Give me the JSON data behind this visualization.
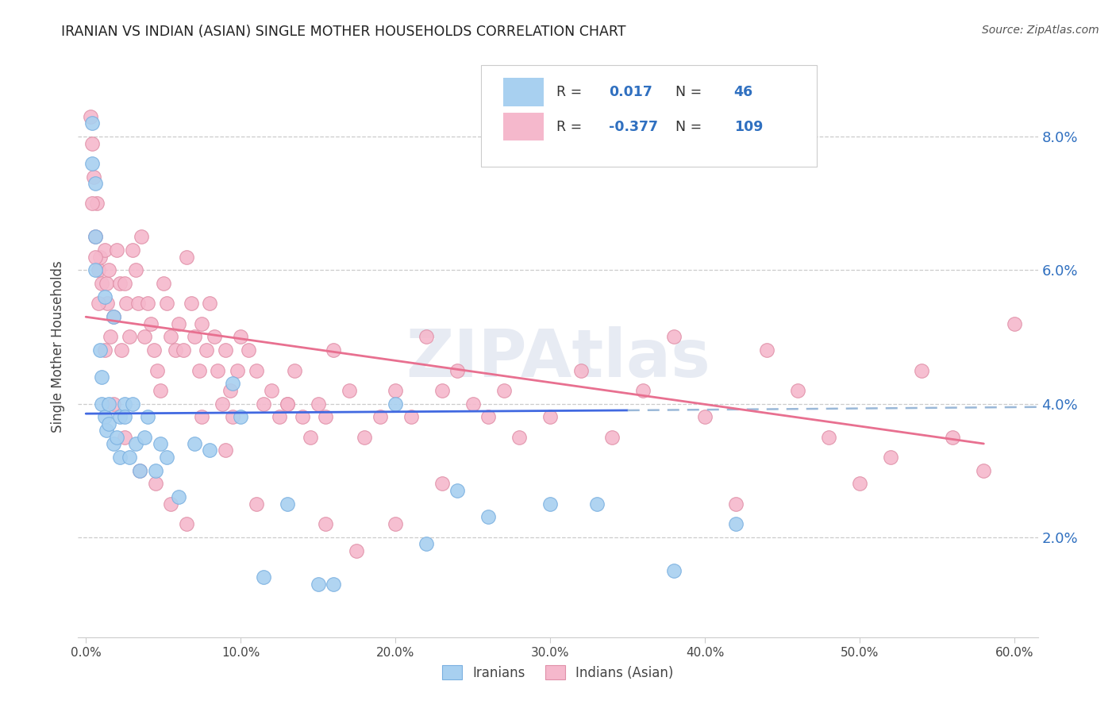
{
  "title": "IRANIAN VS INDIAN (ASIAN) SINGLE MOTHER HOUSEHOLDS CORRELATION CHART",
  "source": "Source: ZipAtlas.com",
  "ylabel": "Single Mother Households",
  "xlabel_ticks": [
    "0.0%",
    "10.0%",
    "20.0%",
    "30.0%",
    "40.0%",
    "50.0%",
    "60.0%"
  ],
  "xlabel_vals": [
    0.0,
    0.1,
    0.2,
    0.3,
    0.4,
    0.5,
    0.6
  ],
  "ytick_labels": [
    "2.0%",
    "4.0%",
    "6.0%",
    "8.0%"
  ],
  "ytick_vals": [
    0.02,
    0.04,
    0.06,
    0.08
  ],
  "xlim": [
    -0.005,
    0.615
  ],
  "ylim": [
    0.005,
    0.092
  ],
  "legend_iranians": "Iranians",
  "legend_indians": "Indians (Asian)",
  "r_iranians": "0.017",
  "n_iranians": "46",
  "r_indians": "-0.377",
  "n_indians": "109",
  "color_iranians": "#a8d0f0",
  "color_iranians_edge": "#7ab0e0",
  "color_iranians_line": "#4169E1",
  "color_iranians_line_dash": "#9ab8d8",
  "color_indians": "#f5b8cc",
  "color_indians_edge": "#e090a8",
  "color_indians_line": "#e87090",
  "color_text_blue": "#3070c0",
  "color_label_dark": "#444444",
  "background_color": "#ffffff",
  "grid_color": "#cccccc",
  "watermark": "ZIPAtlas",
  "iranians_x": [
    0.004,
    0.004,
    0.006,
    0.006,
    0.006,
    0.009,
    0.01,
    0.01,
    0.012,
    0.012,
    0.013,
    0.015,
    0.015,
    0.018,
    0.018,
    0.02,
    0.022,
    0.022,
    0.025,
    0.025,
    0.028,
    0.03,
    0.032,
    0.035,
    0.038,
    0.04,
    0.045,
    0.048,
    0.052,
    0.06,
    0.07,
    0.08,
    0.095,
    0.1,
    0.115,
    0.13,
    0.15,
    0.16,
    0.2,
    0.22,
    0.24,
    0.26,
    0.3,
    0.33,
    0.38,
    0.42
  ],
  "iranians_y": [
    0.082,
    0.076,
    0.073,
    0.065,
    0.06,
    0.048,
    0.044,
    0.04,
    0.056,
    0.038,
    0.036,
    0.04,
    0.037,
    0.053,
    0.034,
    0.035,
    0.038,
    0.032,
    0.04,
    0.038,
    0.032,
    0.04,
    0.034,
    0.03,
    0.035,
    0.038,
    0.03,
    0.034,
    0.032,
    0.026,
    0.034,
    0.033,
    0.043,
    0.038,
    0.014,
    0.025,
    0.013,
    0.013,
    0.04,
    0.019,
    0.027,
    0.023,
    0.025,
    0.025,
    0.015,
    0.022
  ],
  "indians_x": [
    0.003,
    0.004,
    0.005,
    0.006,
    0.007,
    0.008,
    0.009,
    0.01,
    0.012,
    0.013,
    0.014,
    0.015,
    0.016,
    0.018,
    0.02,
    0.022,
    0.023,
    0.025,
    0.026,
    0.028,
    0.03,
    0.032,
    0.034,
    0.036,
    0.038,
    0.04,
    0.042,
    0.044,
    0.046,
    0.048,
    0.05,
    0.052,
    0.055,
    0.058,
    0.06,
    0.063,
    0.065,
    0.068,
    0.07,
    0.073,
    0.075,
    0.078,
    0.08,
    0.083,
    0.085,
    0.088,
    0.09,
    0.093,
    0.095,
    0.098,
    0.1,
    0.105,
    0.11,
    0.115,
    0.12,
    0.125,
    0.13,
    0.135,
    0.14,
    0.145,
    0.15,
    0.155,
    0.16,
    0.17,
    0.18,
    0.19,
    0.2,
    0.21,
    0.22,
    0.23,
    0.24,
    0.25,
    0.26,
    0.27,
    0.28,
    0.3,
    0.32,
    0.34,
    0.36,
    0.38,
    0.4,
    0.42,
    0.44,
    0.46,
    0.48,
    0.5,
    0.52,
    0.54,
    0.56,
    0.58,
    0.6,
    0.004,
    0.006,
    0.008,
    0.012,
    0.018,
    0.025,
    0.035,
    0.045,
    0.055,
    0.065,
    0.075,
    0.09,
    0.11,
    0.13,
    0.155,
    0.175,
    0.2,
    0.23
  ],
  "indians_y": [
    0.083,
    0.079,
    0.074,
    0.065,
    0.07,
    0.06,
    0.062,
    0.058,
    0.063,
    0.058,
    0.055,
    0.06,
    0.05,
    0.053,
    0.063,
    0.058,
    0.048,
    0.058,
    0.055,
    0.05,
    0.063,
    0.06,
    0.055,
    0.065,
    0.05,
    0.055,
    0.052,
    0.048,
    0.045,
    0.042,
    0.058,
    0.055,
    0.05,
    0.048,
    0.052,
    0.048,
    0.062,
    0.055,
    0.05,
    0.045,
    0.052,
    0.048,
    0.055,
    0.05,
    0.045,
    0.04,
    0.048,
    0.042,
    0.038,
    0.045,
    0.05,
    0.048,
    0.045,
    0.04,
    0.042,
    0.038,
    0.04,
    0.045,
    0.038,
    0.035,
    0.04,
    0.038,
    0.048,
    0.042,
    0.035,
    0.038,
    0.042,
    0.038,
    0.05,
    0.042,
    0.045,
    0.04,
    0.038,
    0.042,
    0.035,
    0.038,
    0.045,
    0.035,
    0.042,
    0.05,
    0.038,
    0.025,
    0.048,
    0.042,
    0.035,
    0.028,
    0.032,
    0.045,
    0.035,
    0.03,
    0.052,
    0.07,
    0.062,
    0.055,
    0.048,
    0.04,
    0.035,
    0.03,
    0.028,
    0.025,
    0.022,
    0.038,
    0.033,
    0.025,
    0.04,
    0.022,
    0.018,
    0.022,
    0.028
  ]
}
